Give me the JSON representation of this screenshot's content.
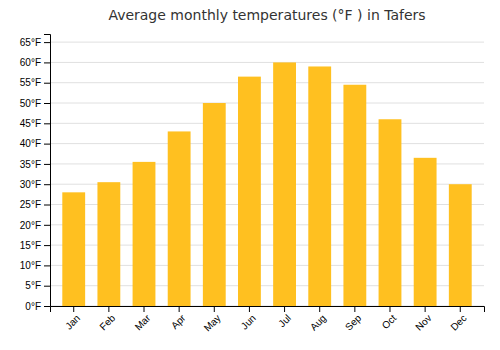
{
  "chart_data": {
    "type": "bar",
    "title": "Average monthly temperatures (°F ) in Tafers",
    "categories": [
      "Jan",
      "Feb",
      "Mar",
      "Apr",
      "May",
      "Jun",
      "Jul",
      "Aug",
      "Sep",
      "Oct",
      "Nov",
      "Dec"
    ],
    "values": [
      28,
      30.5,
      35.5,
      43,
      50,
      56.5,
      60,
      59,
      54.5,
      46,
      36.5,
      30
    ],
    "color": "#FFC020",
    "ylim": [
      0,
      67
    ],
    "yticks": [
      {
        "value": 0,
        "label": "0°F"
      },
      {
        "value": 5,
        "label": "5°F"
      },
      {
        "value": 10,
        "label": "10°F"
      },
      {
        "value": 15,
        "label": "15°F"
      },
      {
        "value": 20,
        "label": "20°F"
      },
      {
        "value": 25,
        "label": "25°F"
      },
      {
        "value": 30,
        "label": "30°F"
      },
      {
        "value": 35,
        "label": "35°F"
      },
      {
        "value": 40,
        "label": "40°F"
      },
      {
        "value": 45,
        "label": "45°F"
      },
      {
        "value": 50,
        "label": "50°F"
      },
      {
        "value": 55,
        "label": "55°F"
      },
      {
        "value": 60,
        "label": "60°F"
      },
      {
        "value": 65,
        "label": "65°F"
      }
    ],
    "grid": true
  }
}
